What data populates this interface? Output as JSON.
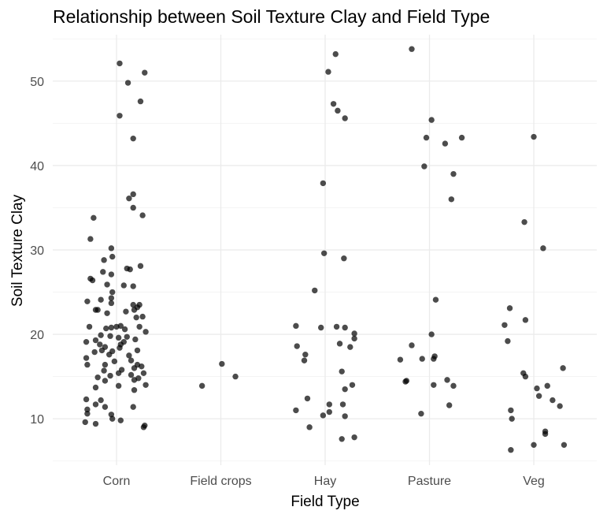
{
  "chart_data": {
    "type": "scatter",
    "title": "Relationship between Soil Texture Clay and Field Type",
    "xlabel": "Field Type",
    "ylabel": "Soil Texture Clay",
    "categories": [
      "Corn",
      "Field crops",
      "Hay",
      "Pasture",
      "Veg"
    ],
    "ylim": [
      4.5,
      55.5
    ],
    "yticks": [
      10,
      20,
      30,
      40,
      50
    ],
    "grid": true,
    "legend": "none",
    "point_color": "#000000",
    "series": [
      {
        "category": "Corn",
        "points": [
          {
            "x": 0.03,
            "y": 52.1
          },
          {
            "x": 0.27,
            "y": 51.0
          },
          {
            "x": 0.11,
            "y": 49.8
          },
          {
            "x": 0.23,
            "y": 47.6
          },
          {
            "x": 0.03,
            "y": 45.9
          },
          {
            "x": 0.16,
            "y": 43.2
          },
          {
            "x": 0.16,
            "y": 36.6
          },
          {
            "x": 0.12,
            "y": 36.1
          },
          {
            "x": 0.16,
            "y": 35.0
          },
          {
            "x": 0.25,
            "y": 34.1
          },
          {
            "x": -0.22,
            "y": 33.8
          },
          {
            "x": -0.25,
            "y": 31.3
          },
          {
            "x": -0.05,
            "y": 30.2
          },
          {
            "x": -0.04,
            "y": 29.2
          },
          {
            "x": -0.12,
            "y": 28.8
          },
          {
            "x": 0.23,
            "y": 28.1
          },
          {
            "x": -0.13,
            "y": 27.4
          },
          {
            "x": -0.05,
            "y": 27.1
          },
          {
            "x": 0.1,
            "y": 27.8
          },
          {
            "x": 0.13,
            "y": 27.7
          },
          {
            "x": -0.25,
            "y": 26.6
          },
          {
            "x": -0.23,
            "y": 26.4
          },
          {
            "x": -0.09,
            "y": 25.9
          },
          {
            "x": 0.07,
            "y": 25.8
          },
          {
            "x": -0.04,
            "y": 25.0
          },
          {
            "x": 0.16,
            "y": 25.7
          },
          {
            "x": -0.05,
            "y": 24.3
          },
          {
            "x": -0.15,
            "y": 24.1
          },
          {
            "x": -0.28,
            "y": 23.9
          },
          {
            "x": -0.05,
            "y": 23.7
          },
          {
            "x": 0.16,
            "y": 23.5
          },
          {
            "x": 0.22,
            "y": 23.5
          },
          {
            "x": 0.2,
            "y": 23.2
          },
          {
            "x": 0.17,
            "y": 22.9
          },
          {
            "x": 0.09,
            "y": 22.7
          },
          {
            "x": -0.18,
            "y": 22.9
          },
          {
            "x": -0.2,
            "y": 22.9
          },
          {
            "x": -0.09,
            "y": 22.5
          },
          {
            "x": 0.25,
            "y": 22.1
          },
          {
            "x": 0.19,
            "y": 22.0
          },
          {
            "x": -0.05,
            "y": 20.8
          },
          {
            "x": 0.0,
            "y": 20.9
          },
          {
            "x": 0.04,
            "y": 21.0
          },
          {
            "x": 0.08,
            "y": 20.6
          },
          {
            "x": 0.22,
            "y": 20.9
          },
          {
            "x": -0.1,
            "y": 20.7
          },
          {
            "x": -0.26,
            "y": 20.9
          },
          {
            "x": 0.28,
            "y": 20.3
          },
          {
            "x": -0.15,
            "y": 19.9
          },
          {
            "x": -0.06,
            "y": 19.8
          },
          {
            "x": 0.02,
            "y": 19.6
          },
          {
            "x": 0.1,
            "y": 19.7
          },
          {
            "x": 0.18,
            "y": 19.4
          },
          {
            "x": -0.2,
            "y": 19.3
          },
          {
            "x": -0.29,
            "y": 19.1
          },
          {
            "x": 0.07,
            "y": 19.1
          },
          {
            "x": 0.04,
            "y": 18.8
          },
          {
            "x": -0.16,
            "y": 18.8
          },
          {
            "x": -0.11,
            "y": 18.5
          },
          {
            "x": -0.04,
            "y": 18.0
          },
          {
            "x": -0.14,
            "y": 18.1
          },
          {
            "x": 0.03,
            "y": 18.4
          },
          {
            "x": -0.21,
            "y": 17.9
          },
          {
            "x": 0.2,
            "y": 18.1
          },
          {
            "x": 0.12,
            "y": 17.5
          },
          {
            "x": -0.07,
            "y": 17.6
          },
          {
            "x": -0.29,
            "y": 17.2
          },
          {
            "x": 0.14,
            "y": 16.9
          },
          {
            "x": -0.02,
            "y": 16.8
          },
          {
            "x": 0.2,
            "y": 16.4
          },
          {
            "x": -0.28,
            "y": 16.4
          },
          {
            "x": -0.11,
            "y": 16.4
          },
          {
            "x": 0.24,
            "y": 16.2
          },
          {
            "x": 0.17,
            "y": 16.0
          },
          {
            "x": -0.12,
            "y": 15.7
          },
          {
            "x": 0.05,
            "y": 15.8
          },
          {
            "x": 0.02,
            "y": 15.4
          },
          {
            "x": 0.14,
            "y": 15.2
          },
          {
            "x": 0.26,
            "y": 15.4
          },
          {
            "x": -0.06,
            "y": 15.1
          },
          {
            "x": 0.21,
            "y": 14.8
          },
          {
            "x": -0.18,
            "y": 14.9
          },
          {
            "x": 0.17,
            "y": 14.6
          },
          {
            "x": -0.11,
            "y": 14.5
          },
          {
            "x": 0.28,
            "y": 14.0
          },
          {
            "x": 0.02,
            "y": 13.9
          },
          {
            "x": -0.2,
            "y": 13.7
          },
          {
            "x": 0.17,
            "y": 13.4
          },
          {
            "x": -0.29,
            "y": 12.3
          },
          {
            "x": -0.15,
            "y": 12.2
          },
          {
            "x": -0.11,
            "y": 11.4
          },
          {
            "x": -0.2,
            "y": 11.7
          },
          {
            "x": -0.28,
            "y": 11.1
          },
          {
            "x": 0.16,
            "y": 11.4
          },
          {
            "x": -0.28,
            "y": 10.6
          },
          {
            "x": -0.05,
            "y": 10.5
          },
          {
            "x": -0.04,
            "y": 10.0
          },
          {
            "x": 0.04,
            "y": 9.8
          },
          {
            "x": -0.3,
            "y": 9.6
          },
          {
            "x": -0.2,
            "y": 9.4
          },
          {
            "x": 0.26,
            "y": 9.0
          },
          {
            "x": 0.27,
            "y": 9.2
          }
        ]
      },
      {
        "category": "Field crops",
        "points": [
          {
            "x": 0.01,
            "y": 16.5
          },
          {
            "x": 0.14,
            "y": 15.0
          },
          {
            "x": -0.18,
            "y": 13.9
          }
        ]
      },
      {
        "category": "Hay",
        "points": [
          {
            "x": 0.1,
            "y": 53.2
          },
          {
            "x": 0.03,
            "y": 51.1
          },
          {
            "x": 0.08,
            "y": 47.3
          },
          {
            "x": 0.12,
            "y": 46.5
          },
          {
            "x": 0.19,
            "y": 45.6
          },
          {
            "x": -0.02,
            "y": 37.9
          },
          {
            "x": -0.01,
            "y": 29.6
          },
          {
            "x": 0.18,
            "y": 29.0
          },
          {
            "x": -0.1,
            "y": 25.2
          },
          {
            "x": -0.28,
            "y": 21.0
          },
          {
            "x": -0.04,
            "y": 20.8
          },
          {
            "x": 0.11,
            "y": 20.9
          },
          {
            "x": 0.19,
            "y": 20.8
          },
          {
            "x": 0.28,
            "y": 20.1
          },
          {
            "x": 0.28,
            "y": 19.5
          },
          {
            "x": 0.14,
            "y": 18.9
          },
          {
            "x": 0.24,
            "y": 18.5
          },
          {
            "x": -0.27,
            "y": 18.6
          },
          {
            "x": -0.19,
            "y": 17.6
          },
          {
            "x": -0.2,
            "y": 16.9
          },
          {
            "x": 0.16,
            "y": 15.6
          },
          {
            "x": 0.26,
            "y": 14.0
          },
          {
            "x": 0.19,
            "y": 13.5
          },
          {
            "x": -0.17,
            "y": 12.4
          },
          {
            "x": 0.17,
            "y": 11.7
          },
          {
            "x": 0.04,
            "y": 11.7
          },
          {
            "x": -0.28,
            "y": 11.0
          },
          {
            "x": 0.04,
            "y": 10.8
          },
          {
            "x": -0.02,
            "y": 10.4
          },
          {
            "x": 0.19,
            "y": 10.3
          },
          {
            "x": -0.15,
            "y": 9.0
          },
          {
            "x": 0.28,
            "y": 7.8
          },
          {
            "x": 0.16,
            "y": 7.6
          }
        ]
      },
      {
        "category": "Pasture",
        "points": [
          {
            "x": -0.17,
            "y": 53.8
          },
          {
            "x": 0.02,
            "y": 45.4
          },
          {
            "x": -0.03,
            "y": 43.3
          },
          {
            "x": 0.15,
            "y": 42.6
          },
          {
            "x": 0.31,
            "y": 43.3
          },
          {
            "x": -0.05,
            "y": 39.9
          },
          {
            "x": 0.23,
            "y": 39.0
          },
          {
            "x": 0.21,
            "y": 36.0
          },
          {
            "x": 0.06,
            "y": 24.1
          },
          {
            "x": 0.02,
            "y": 20.0
          },
          {
            "x": -0.17,
            "y": 18.7
          },
          {
            "x": 0.05,
            "y": 17.4
          },
          {
            "x": 0.04,
            "y": 17.1
          },
          {
            "x": -0.07,
            "y": 17.1
          },
          {
            "x": -0.28,
            "y": 17.0
          },
          {
            "x": 0.17,
            "y": 14.6
          },
          {
            "x": 0.23,
            "y": 13.9
          },
          {
            "x": 0.04,
            "y": 14.0
          },
          {
            "x": -0.23,
            "y": 14.4
          },
          {
            "x": -0.22,
            "y": 14.5
          },
          {
            "x": 0.19,
            "y": 11.6
          },
          {
            "x": -0.08,
            "y": 10.6
          }
        ]
      },
      {
        "category": "Veg",
        "points": [
          {
            "x": 0.0,
            "y": 43.4
          },
          {
            "x": -0.09,
            "y": 33.3
          },
          {
            "x": 0.09,
            "y": 30.2
          },
          {
            "x": -0.23,
            "y": 23.1
          },
          {
            "x": -0.08,
            "y": 21.7
          },
          {
            "x": -0.28,
            "y": 21.1
          },
          {
            "x": -0.25,
            "y": 19.2
          },
          {
            "x": 0.28,
            "y": 16.0
          },
          {
            "x": -0.1,
            "y": 15.4
          },
          {
            "x": -0.08,
            "y": 15.0
          },
          {
            "x": 0.13,
            "y": 13.9
          },
          {
            "x": 0.03,
            "y": 13.6
          },
          {
            "x": 0.05,
            "y": 12.7
          },
          {
            "x": 0.18,
            "y": 12.2
          },
          {
            "x": -0.22,
            "y": 11.0
          },
          {
            "x": 0.25,
            "y": 11.5
          },
          {
            "x": -0.21,
            "y": 10.0
          },
          {
            "x": 0.11,
            "y": 8.5
          },
          {
            "x": 0.11,
            "y": 8.2
          },
          {
            "x": 0.0,
            "y": 6.9
          },
          {
            "x": 0.29,
            "y": 6.9
          },
          {
            "x": -0.22,
            "y": 6.3
          }
        ]
      }
    ]
  }
}
